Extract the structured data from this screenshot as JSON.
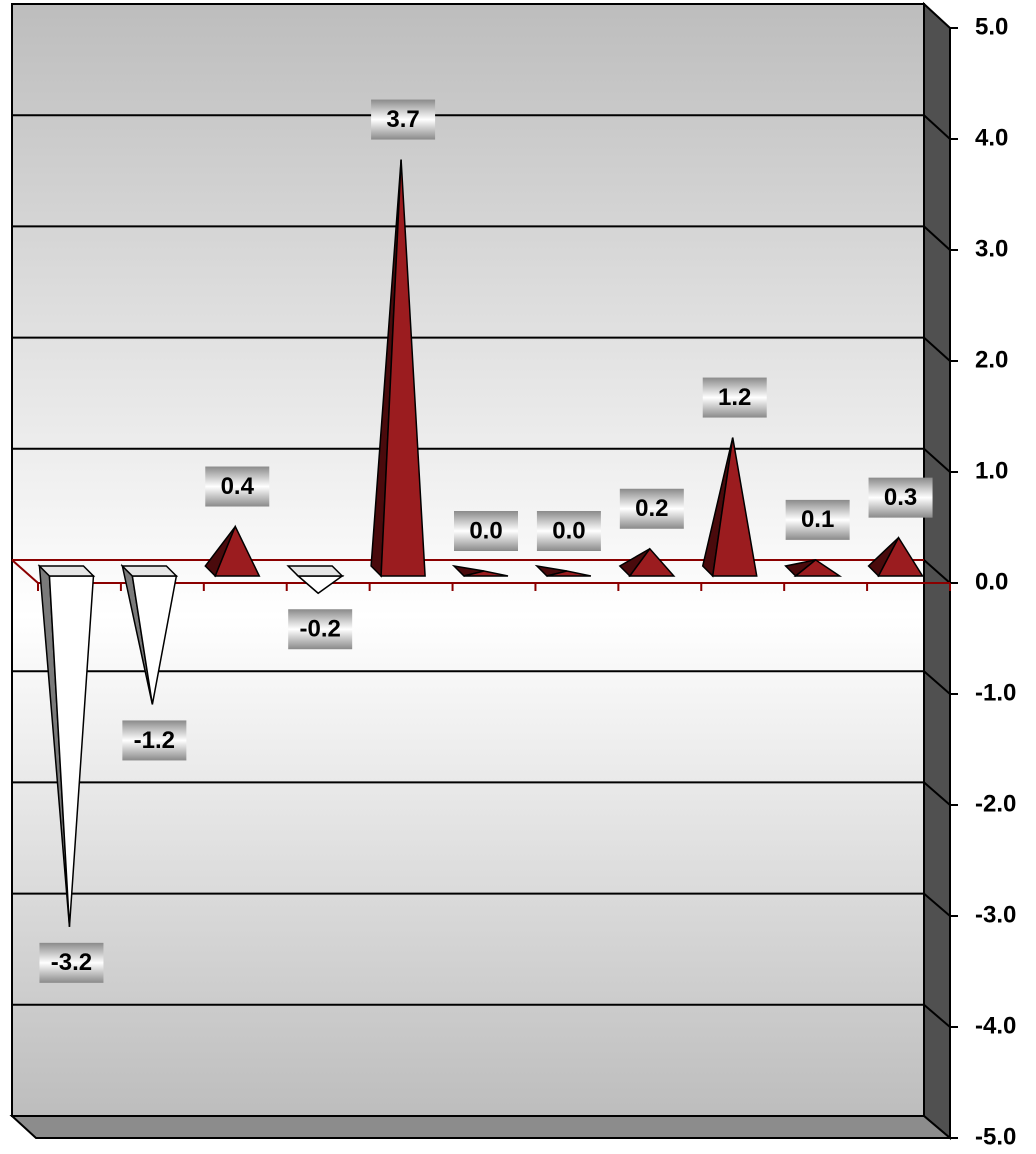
{
  "chart_data": {
    "type": "pyramid",
    "categories": [
      null,
      null,
      null,
      null,
      null,
      null,
      null,
      null,
      null,
      null,
      null
    ],
    "values": [
      -3.2,
      -1.2,
      0.4,
      -0.2,
      3.7,
      0.0,
      0.0,
      0.2,
      1.2,
      0.1,
      0.3
    ],
    "value_labels": [
      "-3.2",
      "-1.2",
      "0.4",
      "-0.2",
      "3.7",
      "0.0",
      "0.0",
      "0.2",
      "1.2",
      "0.1",
      "0.3"
    ],
    "color": "#9b1c1f",
    "negative_color": "#e6e6e6",
    "ylim": [
      -5,
      5
    ],
    "yticks": [
      {
        "value": 5,
        "label": "5.0"
      },
      {
        "value": 4,
        "label": "4.0"
      },
      {
        "value": 3,
        "label": "3.0"
      },
      {
        "value": 2,
        "label": "2.0"
      },
      {
        "value": 1,
        "label": "1.0"
      },
      {
        "value": 0,
        "label": "0.0"
      },
      {
        "value": -1,
        "label": "-1.0"
      },
      {
        "value": -2,
        "label": "-2.0"
      },
      {
        "value": -3,
        "label": "-3.0"
      },
      {
        "value": -4,
        "label": "-4.0"
      },
      {
        "value": -5,
        "label": "-5.0"
      }
    ],
    "grid": true
  }
}
